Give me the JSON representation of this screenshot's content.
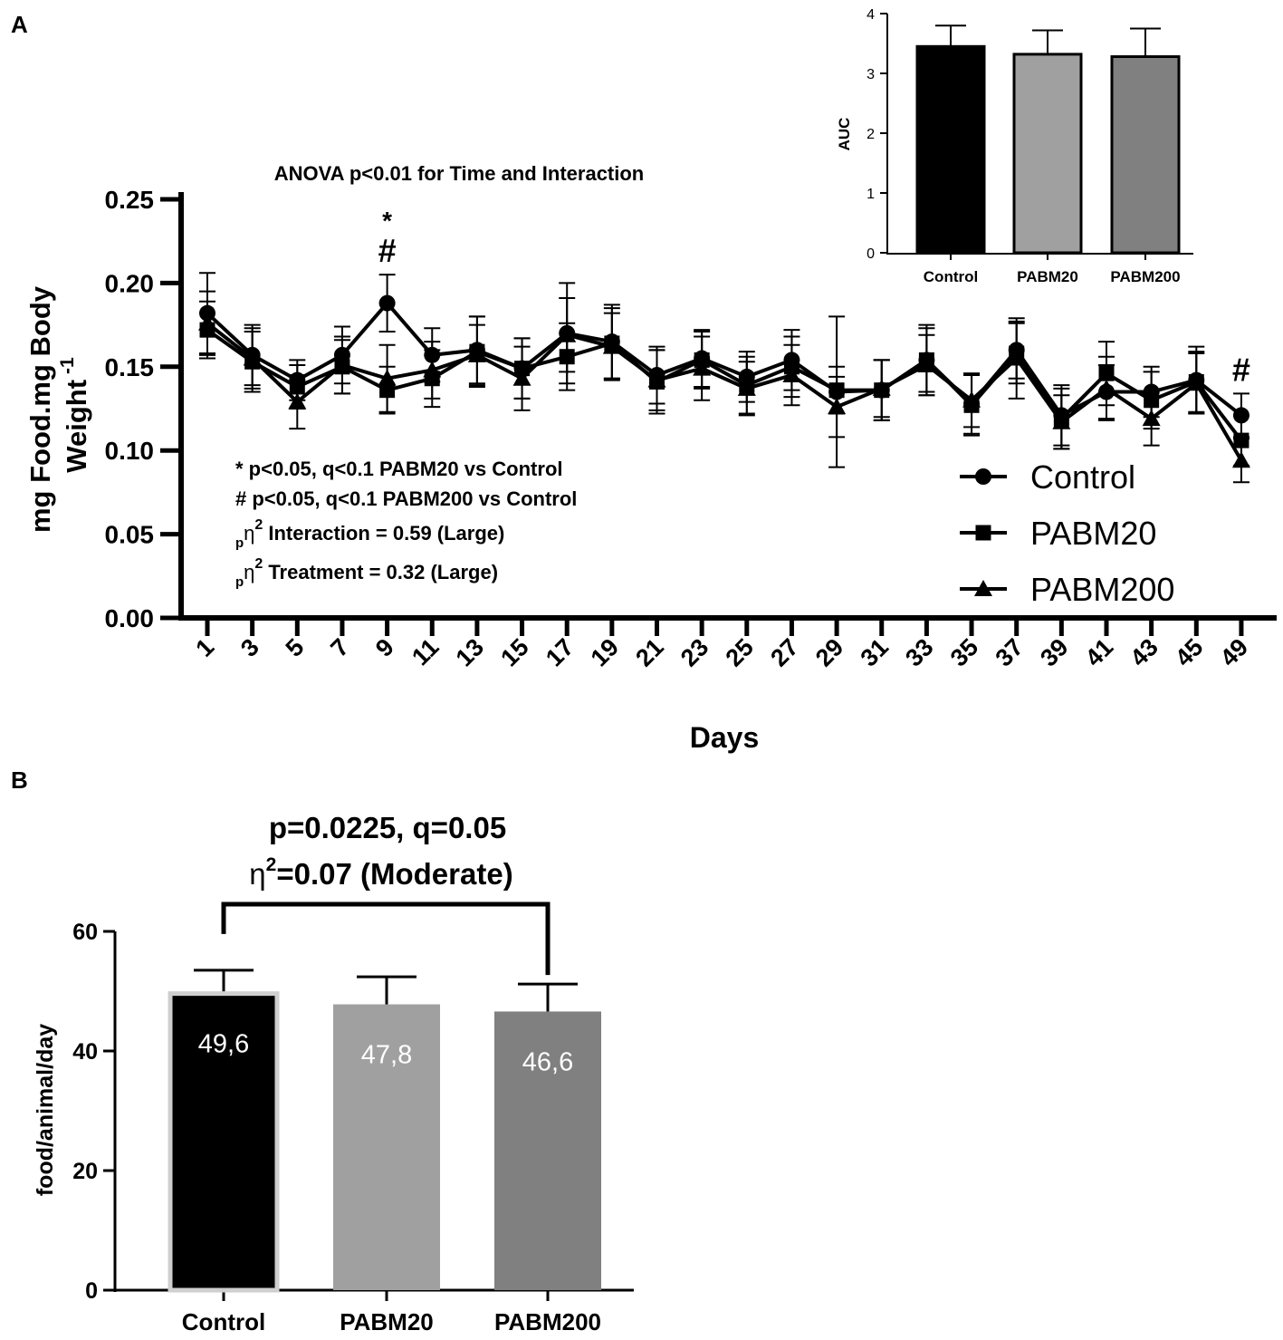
{
  "panel_a_label": "A",
  "panel_b_label": "B",
  "chart_data": [
    {
      "id": "line",
      "type": "line",
      "title": "ANOVA p<0.01 for Time and Interaction",
      "xlabel": "Days",
      "ylabel_line1": "mg Food.mg Body",
      "ylabel_line2": "Weight",
      "ylabel_sup": "-1",
      "ylim": [
        0,
        0.25
      ],
      "yticks": [
        0.0,
        0.05,
        0.1,
        0.15,
        0.2,
        0.25
      ],
      "ytick_labels": [
        "0.00",
        "0.05",
        "0.10",
        "0.15",
        "0.20",
        "0.25"
      ],
      "x": [
        "1",
        "3",
        "5",
        "7",
        "9",
        "11",
        "13",
        "15",
        "17",
        "19",
        "21",
        "23",
        "25",
        "27",
        "29",
        "31",
        "33",
        "35",
        "37",
        "39",
        "41",
        "43",
        "45",
        "49"
      ],
      "series": [
        {
          "name": "Control",
          "marker": "circle",
          "values": [
            0.182,
            0.157,
            0.142,
            0.157,
            0.188,
            0.157,
            0.16,
            0.149,
            0.17,
            0.165,
            0.145,
            0.155,
            0.144,
            0.154,
            0.135,
            0.136,
            0.154,
            0.128,
            0.16,
            0.121,
            0.135,
            0.135,
            0.142,
            0.121
          ],
          "errors": [
            0.024,
            0.018,
            0.012,
            0.017,
            0.017,
            0.016,
            0.02,
            0.018,
            0.03,
            0.022,
            0.017,
            0.017,
            0.015,
            0.018,
            0.045,
            0.018,
            0.021,
            0.018,
            0.017,
            0.018,
            0.016,
            0.015,
            0.02,
            0.013
          ]
        },
        {
          "name": "PABM20",
          "marker": "square",
          "values": [
            0.172,
            0.153,
            0.138,
            0.15,
            0.136,
            0.143,
            0.159,
            0.149,
            0.156,
            0.164,
            0.141,
            0.154,
            0.139,
            0.15,
            0.136,
            0.136,
            0.154,
            0.127,
            0.158,
            0.119,
            0.146,
            0.13,
            0.141,
            0.106
          ],
          "errors": [
            0.017,
            0.018,
            0.013,
            0.016,
            0.014,
            0.017,
            0.021,
            0.018,
            0.02,
            0.021,
            0.019,
            0.017,
            0.017,
            0.018,
            0.014,
            0.018,
            0.019,
            0.018,
            0.018,
            0.018,
            0.019,
            0.017,
            0.018,
            0.015
          ]
        },
        {
          "name": "PABM200",
          "marker": "triangle",
          "values": [
            0.176,
            0.155,
            0.129,
            0.151,
            0.143,
            0.148,
            0.157,
            0.143,
            0.169,
            0.162,
            0.142,
            0.149,
            0.137,
            0.145,
            0.126,
            0.137,
            0.151,
            0.13,
            0.155,
            0.117,
            0.137,
            0.119,
            0.14,
            0.094
          ],
          "errors": [
            0.019,
            0.018,
            0.016,
            0.017,
            0.02,
            0.017,
            0.018,
            0.019,
            0.022,
            0.02,
            0.018,
            0.019,
            0.016,
            0.018,
            0.018,
            0.017,
            0.018,
            0.016,
            0.024,
            0.016,
            0.019,
            0.016,
            0.018,
            0.013
          ]
        }
      ],
      "significance_marks": [
        {
          "x": "9",
          "symbols": [
            "*",
            "#"
          ]
        },
        {
          "x": "49",
          "symbols": [
            "#"
          ]
        }
      ],
      "annotations": [
        "* p<0.05, q<0.1 PABM20 vs Control",
        "# p<0.05, q<0.1 PABM200 vs Control"
      ],
      "effect_sizes": [
        {
          "prefix": "p",
          "symbol": "η",
          "sup": "2",
          "text": "Interaction = 0.59 (Large)"
        },
        {
          "prefix": "p",
          "symbol": "η",
          "sup": "2",
          "text": "Treatment = 0.32 (Large)"
        }
      ],
      "legend": {
        "placement": "bottom-right",
        "entries": [
          "Control",
          "PABM20",
          "PABM200"
        ]
      }
    },
    {
      "id": "inset",
      "type": "bar",
      "ylabel": "AUC",
      "ylim": [
        0,
        4
      ],
      "yticks": [
        0,
        1,
        2,
        3,
        4
      ],
      "categories": [
        "Control",
        "PABM20",
        "PABM200"
      ],
      "values": [
        3.45,
        3.32,
        3.28
      ],
      "errors": [
        0.35,
        0.4,
        0.47
      ],
      "colors": [
        "#000000",
        "#a0a0a0",
        "#808080"
      ]
    },
    {
      "id": "barB",
      "type": "bar",
      "ylabel": "food/animal/day",
      "ylim": [
        0,
        60
      ],
      "yticks": [
        0,
        20,
        40,
        60
      ],
      "categories": [
        "Control",
        "PABM20",
        "PABM200"
      ],
      "values": [
        49.6,
        47.8,
        46.6
      ],
      "value_labels": [
        "49,6",
        "47,8",
        "46,6"
      ],
      "errors": [
        3.9,
        4.6,
        4.6
      ],
      "colors": [
        "#000000",
        "#a0a0a0",
        "#808080"
      ],
      "comparison": {
        "from": "Control",
        "to": "PABM200",
        "line1": "p=0.0225, q=0.05",
        "line2_symbol": "η",
        "line2_sup": "2",
        "line2_text": "=0.07 (Moderate)"
      }
    }
  ]
}
